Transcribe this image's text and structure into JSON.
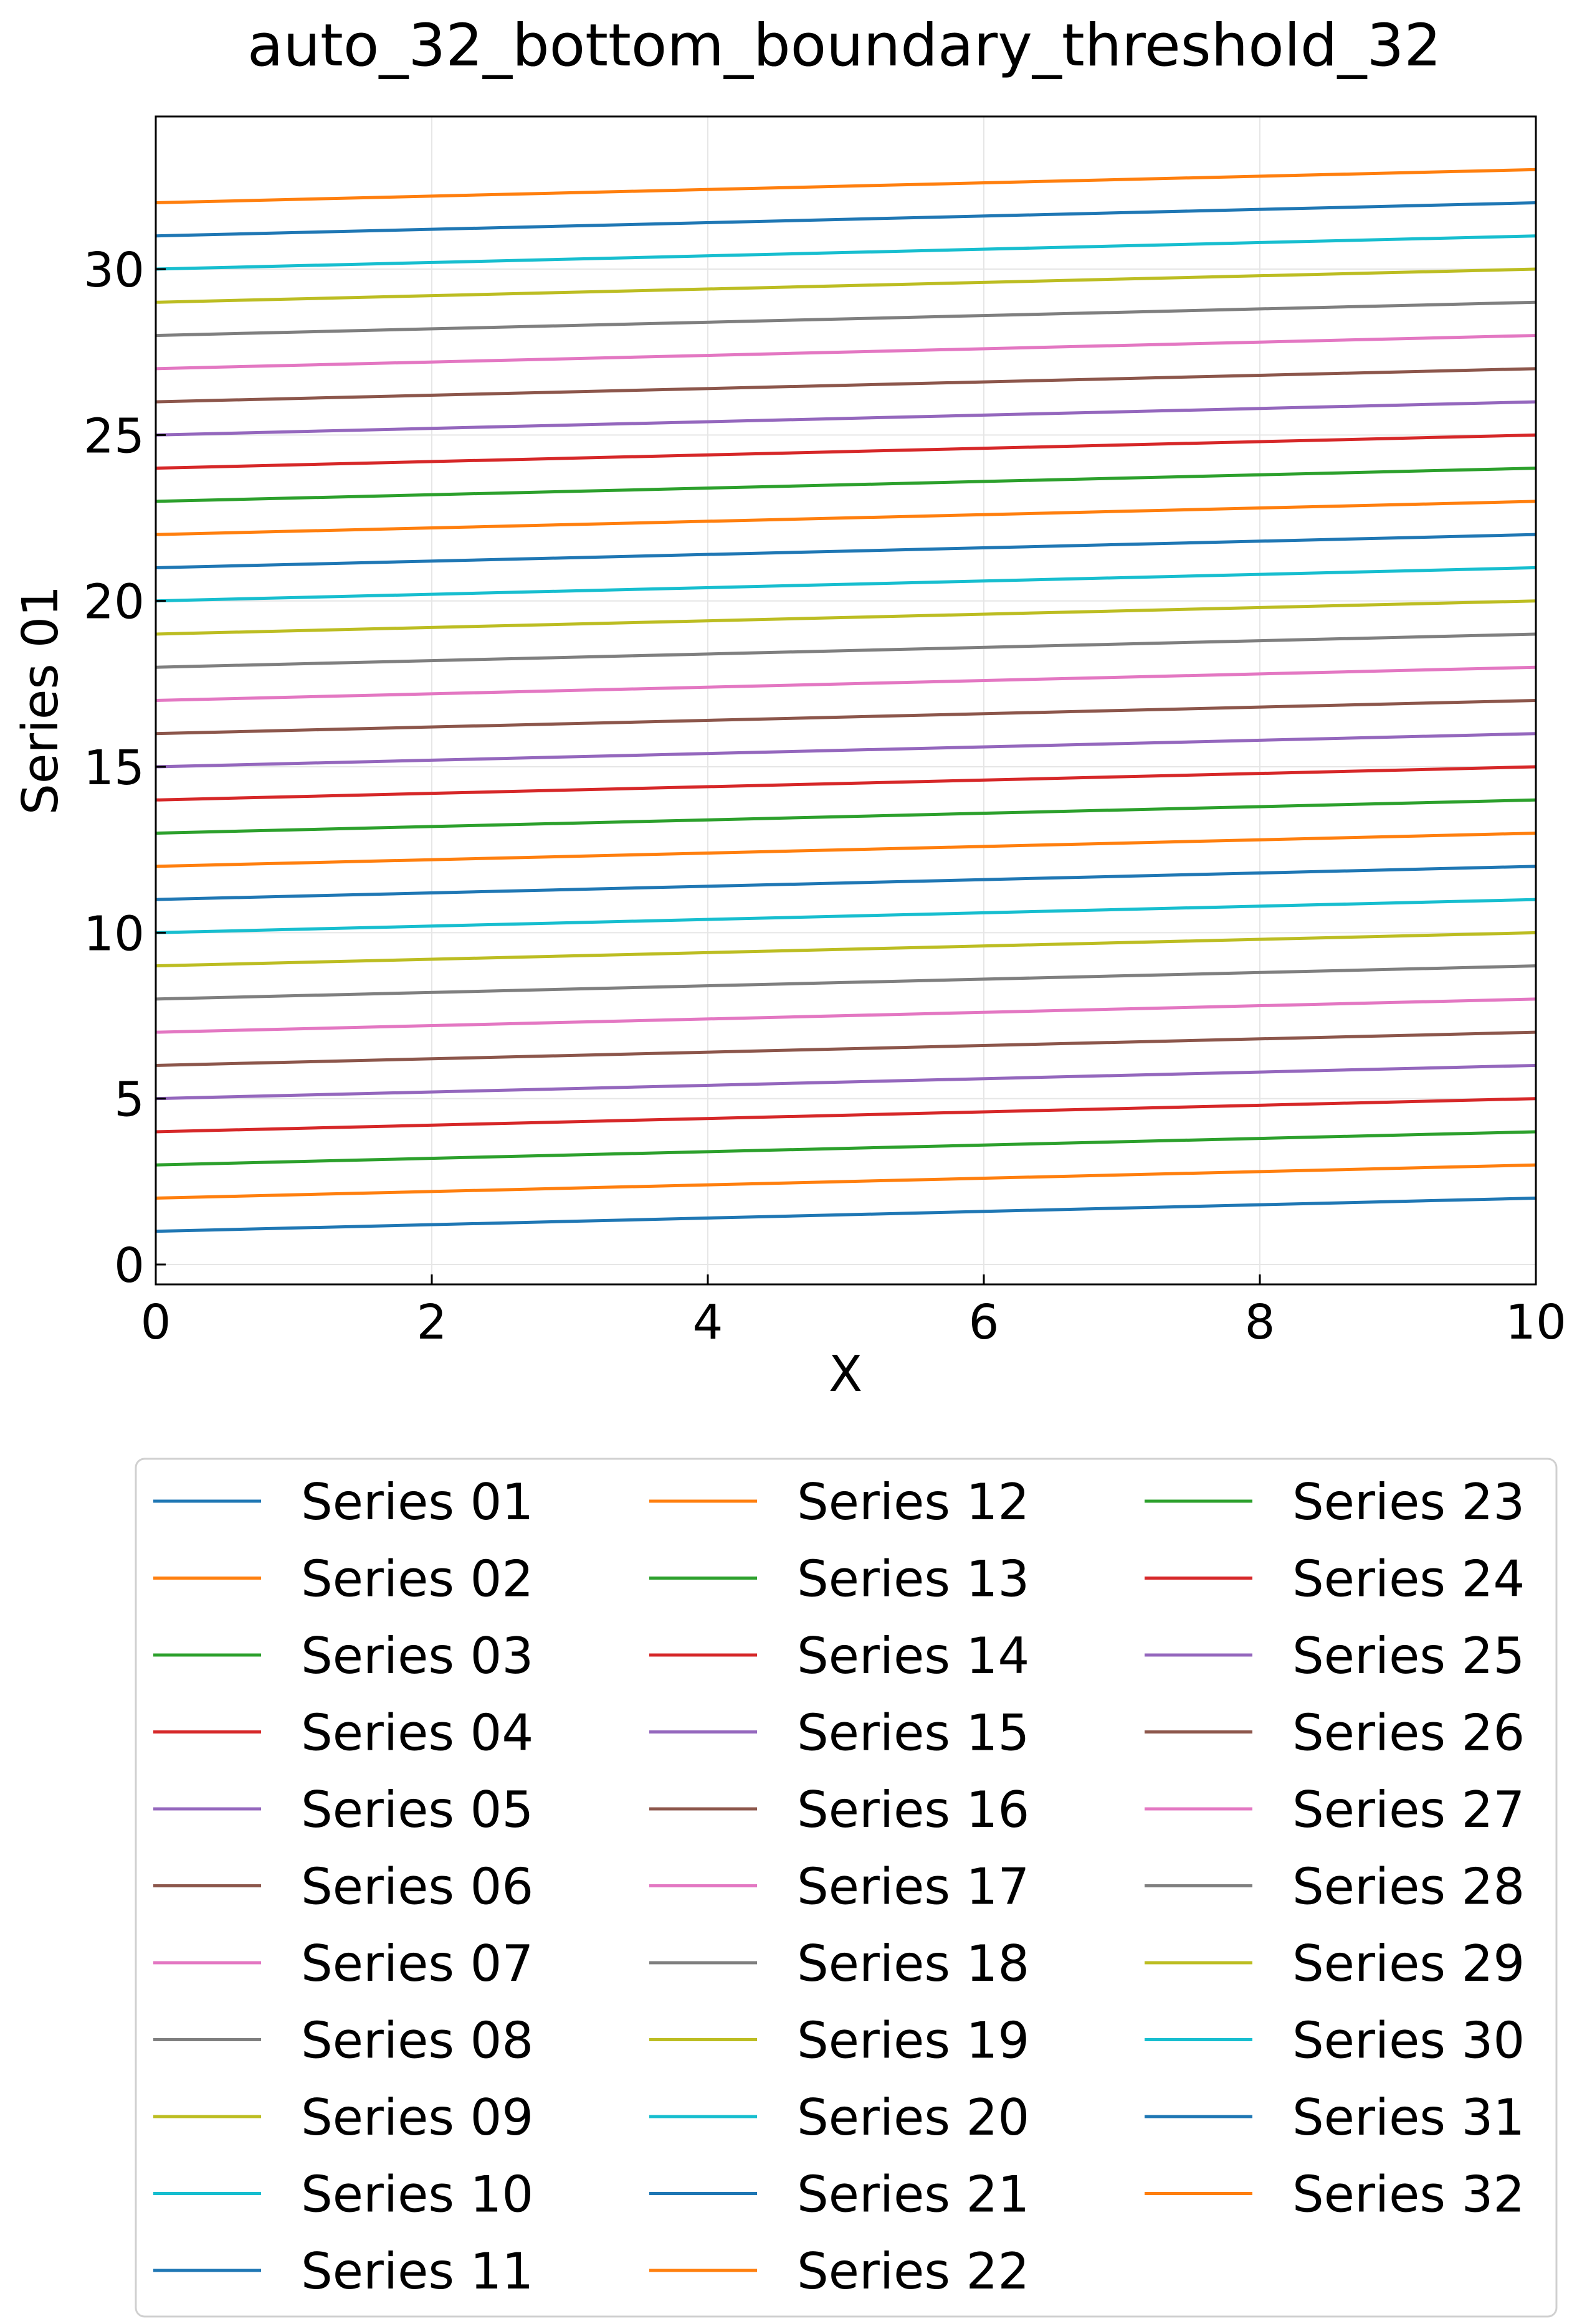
{
  "chart_data": {
    "type": "line",
    "title": "auto_32_bottom_boundary_threshold_32",
    "xlabel": "X",
    "ylabel": "Series 01",
    "xlim": [
      0,
      10
    ],
    "ylim": [
      -0.6,
      34.6
    ],
    "xticks": [
      0,
      2,
      4,
      6,
      8,
      10
    ],
    "yticks": [
      0,
      5,
      10,
      15,
      20,
      25,
      30
    ],
    "grid": true,
    "legend_position": "below plot, 3 columns",
    "x": [
      0,
      10
    ],
    "series": [
      {
        "name": "Series 01",
        "color": "#1f77b4",
        "values": [
          1,
          2
        ]
      },
      {
        "name": "Series 02",
        "color": "#ff7f0e",
        "values": [
          2,
          3
        ]
      },
      {
        "name": "Series 03",
        "color": "#2ca02c",
        "values": [
          3,
          4
        ]
      },
      {
        "name": "Series 04",
        "color": "#d62728",
        "values": [
          4,
          5
        ]
      },
      {
        "name": "Series 05",
        "color": "#9467bd",
        "values": [
          5,
          6
        ]
      },
      {
        "name": "Series 06",
        "color": "#8c564b",
        "values": [
          6,
          7
        ]
      },
      {
        "name": "Series 07",
        "color": "#e377c2",
        "values": [
          7,
          8
        ]
      },
      {
        "name": "Series 08",
        "color": "#7f7f7f",
        "values": [
          8,
          9
        ]
      },
      {
        "name": "Series 09",
        "color": "#bcbd22",
        "values": [
          9,
          10
        ]
      },
      {
        "name": "Series 10",
        "color": "#17becf",
        "values": [
          10,
          11
        ]
      },
      {
        "name": "Series 11",
        "color": "#1f77b4",
        "values": [
          11,
          12
        ]
      },
      {
        "name": "Series 12",
        "color": "#ff7f0e",
        "values": [
          12,
          13
        ]
      },
      {
        "name": "Series 13",
        "color": "#2ca02c",
        "values": [
          13,
          14
        ]
      },
      {
        "name": "Series 14",
        "color": "#d62728",
        "values": [
          14,
          15
        ]
      },
      {
        "name": "Series 15",
        "color": "#9467bd",
        "values": [
          15,
          16
        ]
      },
      {
        "name": "Series 16",
        "color": "#8c564b",
        "values": [
          16,
          17
        ]
      },
      {
        "name": "Series 17",
        "color": "#e377c2",
        "values": [
          17,
          18
        ]
      },
      {
        "name": "Series 18",
        "color": "#7f7f7f",
        "values": [
          18,
          19
        ]
      },
      {
        "name": "Series 19",
        "color": "#bcbd22",
        "values": [
          19,
          20
        ]
      },
      {
        "name": "Series 20",
        "color": "#17becf",
        "values": [
          20,
          21
        ]
      },
      {
        "name": "Series 21",
        "color": "#1f77b4",
        "values": [
          21,
          22
        ]
      },
      {
        "name": "Series 22",
        "color": "#ff7f0e",
        "values": [
          22,
          23
        ]
      },
      {
        "name": "Series 23",
        "color": "#2ca02c",
        "values": [
          23,
          24
        ]
      },
      {
        "name": "Series 24",
        "color": "#d62728",
        "values": [
          24,
          25
        ]
      },
      {
        "name": "Series 25",
        "color": "#9467bd",
        "values": [
          25,
          26
        ]
      },
      {
        "name": "Series 26",
        "color": "#8c564b",
        "values": [
          26,
          27
        ]
      },
      {
        "name": "Series 27",
        "color": "#e377c2",
        "values": [
          27,
          28
        ]
      },
      {
        "name": "Series 28",
        "color": "#7f7f7f",
        "values": [
          28,
          29
        ]
      },
      {
        "name": "Series 29",
        "color": "#bcbd22",
        "values": [
          29,
          30
        ]
      },
      {
        "name": "Series 30",
        "color": "#17becf",
        "values": [
          30,
          31
        ]
      },
      {
        "name": "Series 31",
        "color": "#1f77b4",
        "values": [
          31,
          32
        ]
      },
      {
        "name": "Series 32",
        "color": "#ff7f0e",
        "values": [
          32,
          33
        ]
      }
    ]
  }
}
